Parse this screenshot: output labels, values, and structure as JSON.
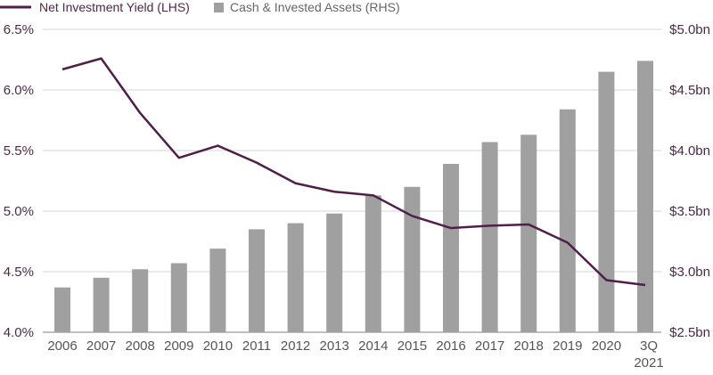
{
  "chart_data": {
    "type": "bar+line",
    "title": "",
    "categories": [
      "2006",
      "2007",
      "2008",
      "2009",
      "2010",
      "2011",
      "2012",
      "2013",
      "2014",
      "2015",
      "2016",
      "2017",
      "2018",
      "2019",
      "2020",
      "3Q 2021"
    ],
    "category_lines": [
      [
        "2006"
      ],
      [
        "2007"
      ],
      [
        "2008"
      ],
      [
        "2009"
      ],
      [
        "2010"
      ],
      [
        "2011"
      ],
      [
        "2012"
      ],
      [
        "2013"
      ],
      [
        "2014"
      ],
      [
        "2015"
      ],
      [
        "2016"
      ],
      [
        "2017"
      ],
      [
        "2018"
      ],
      [
        "2019"
      ],
      [
        "2020"
      ],
      [
        "3Q",
        "2021"
      ]
    ],
    "series": [
      {
        "name": "Net Investment Yield (LHS)",
        "type": "line",
        "axis": "left",
        "color": "#4f1f4a",
        "values": [
          6.17,
          6.26,
          5.81,
          5.44,
          5.54,
          5.4,
          5.23,
          5.16,
          5.13,
          4.96,
          4.86,
          4.88,
          4.89,
          4.74,
          4.43,
          4.39
        ]
      },
      {
        "name": "Cash & Invested Assets (RHS)",
        "type": "bar",
        "axis": "right",
        "color": "#a0a0a0",
        "values": [
          2.87,
          2.95,
          3.02,
          3.07,
          3.19,
          3.35,
          3.4,
          3.48,
          3.63,
          3.7,
          3.89,
          4.07,
          4.13,
          4.34,
          4.65,
          4.74
        ]
      }
    ],
    "left_axis": {
      "ylim": [
        4.0,
        6.5
      ],
      "ticks": [
        4.0,
        4.5,
        5.0,
        5.5,
        6.0,
        6.5
      ],
      "tick_labels": [
        "4.0%",
        "4.5%",
        "5.0%",
        "5.5%",
        "6.0%",
        "6.5%"
      ]
    },
    "right_axis": {
      "ylim": [
        2.5,
        5.0
      ],
      "ticks": [
        2.5,
        3.0,
        3.5,
        4.0,
        4.5,
        5.0
      ],
      "tick_labels": [
        "$2.5bn",
        "$3.0bn",
        "$3.5bn",
        "$4.0bn",
        "$4.5bn",
        "$5.0bn"
      ]
    },
    "grid": true,
    "legend_position": "top-left"
  }
}
